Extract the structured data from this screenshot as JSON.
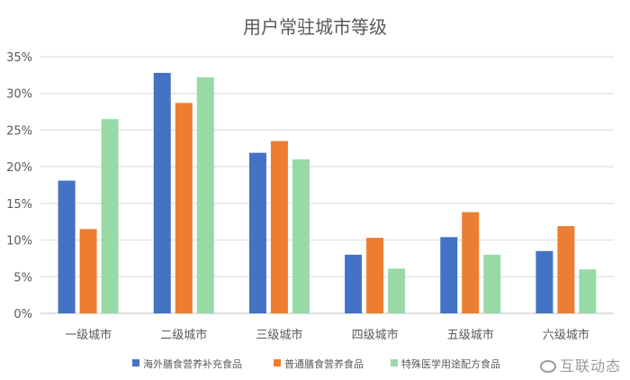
{
  "chart_data": {
    "type": "bar",
    "title": "用户常驻城市等级",
    "categories": [
      "一级城市",
      "二级城市",
      "三级城市",
      "四级城市",
      "五级城市",
      "六级城市"
    ],
    "series": [
      {
        "name": "海外膳食营养补充食品",
        "color": "#4472C4",
        "values": [
          18.1,
          32.8,
          21.9,
          8.0,
          10.4,
          8.5
        ]
      },
      {
        "name": "普通膳食营养食品",
        "color": "#ED7D31",
        "values": [
          11.5,
          28.7,
          23.5,
          10.3,
          13.8,
          11.9
        ]
      },
      {
        "name": "特殊医学用途配方食品",
        "color": "#97DAA6",
        "values": [
          26.5,
          32.2,
          21.0,
          6.1,
          8.0,
          6.0
        ]
      }
    ],
    "ylim": [
      0,
      35
    ],
    "yticks": [
      "0%",
      "5%",
      "10%",
      "15%",
      "20%",
      "25%",
      "30%",
      "35%"
    ],
    "grid": true,
    "legend": "bottom"
  },
  "watermark": "互联动态"
}
